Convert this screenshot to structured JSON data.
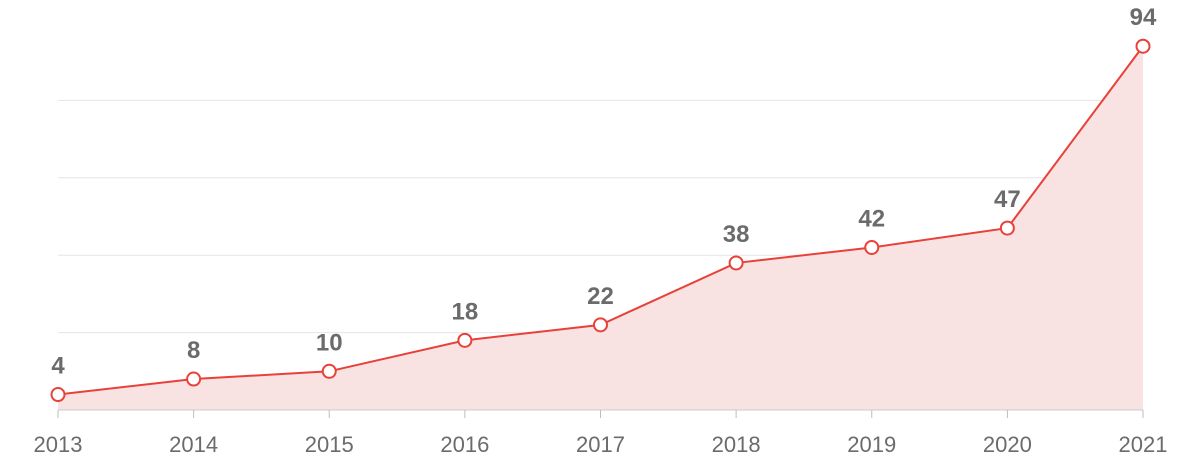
{
  "chart_data": {
    "type": "area",
    "categories": [
      "2013",
      "2014",
      "2015",
      "2016",
      "2017",
      "2018",
      "2019",
      "2020",
      "2021"
    ],
    "series": [
      {
        "values": [
          4,
          8,
          10,
          18,
          22,
          38,
          42,
          47,
          94
        ]
      }
    ],
    "ylim": [
      0,
      100
    ],
    "grid": true,
    "line_color": "#e8413a",
    "area_color": "#f9e2e2",
    "marker_fill": "#ffffff",
    "label_color": "#6b6b6b"
  }
}
